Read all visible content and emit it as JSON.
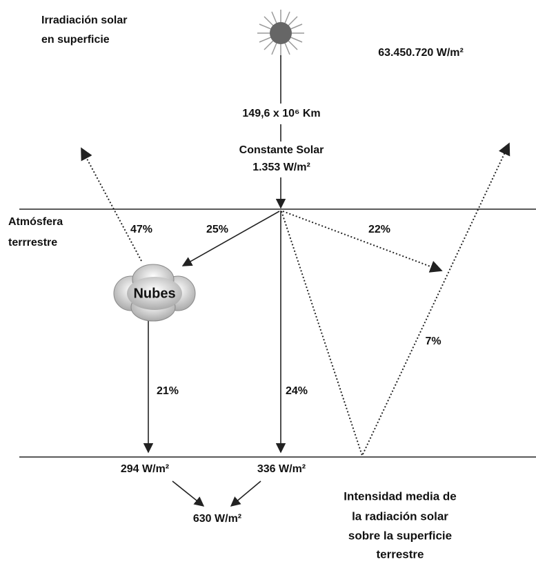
{
  "title_lines": [
    "Irradiación solar",
    "en superficie"
  ],
  "sun_power": "63.450.720 W/m²",
  "distance": "149,6 x 10⁶ Km",
  "solar_constant": {
    "label": "Constante Solar",
    "value": "1.353 W/m²"
  },
  "atmosphere_lines": [
    "Atmósfera",
    "terrrestre"
  ],
  "percentages": {
    "reflected_clouds": "47%",
    "to_clouds": "25%",
    "scattered": "22%",
    "ground_reflected": "7%",
    "from_clouds": "21%",
    "direct": "24%"
  },
  "clouds": "Nubes",
  "surface": {
    "diffuse": "294 W/m²",
    "direct": "336 W/m²",
    "total": "630 W/m²"
  },
  "caption_lines": [
    "Intensidad media de",
    "la radiación solar",
    "sobre la superficie",
    "terrestre"
  ]
}
